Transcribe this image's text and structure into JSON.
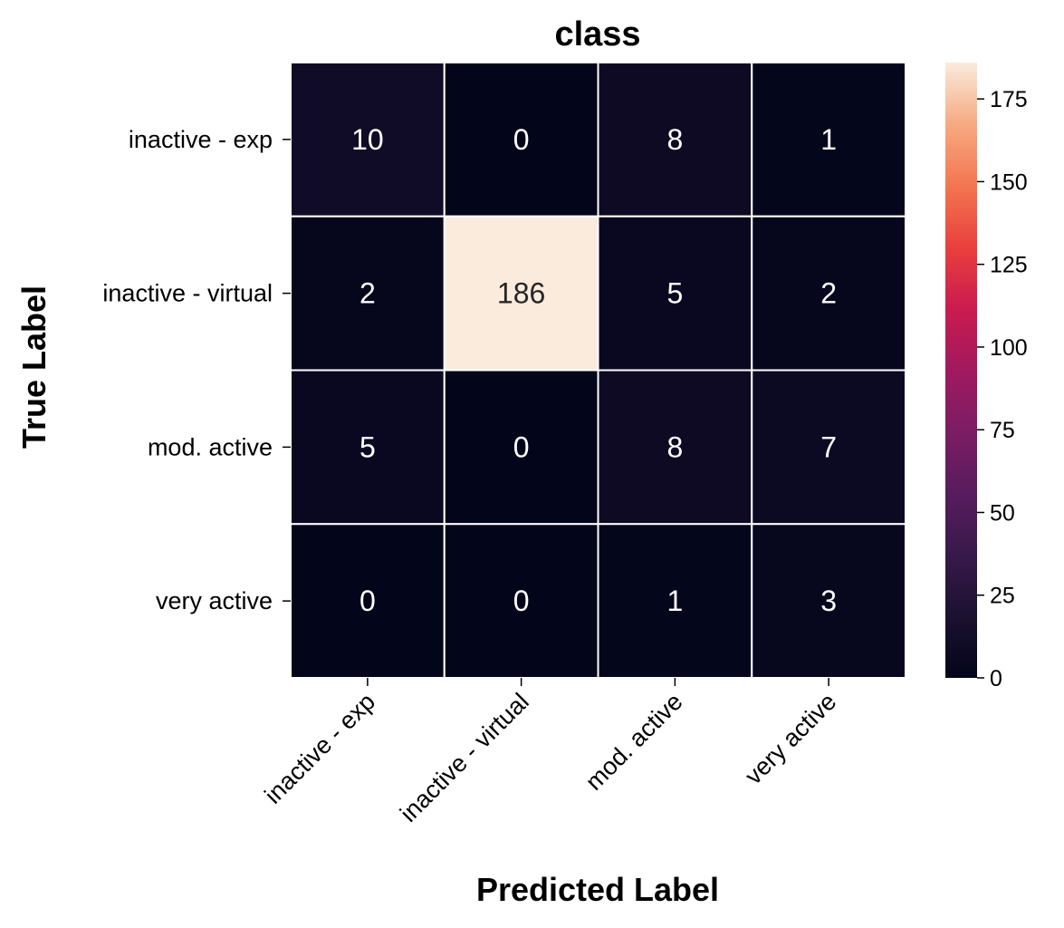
{
  "chart_data": {
    "type": "heatmap",
    "title": "class",
    "xlabel": "Predicted Label",
    "ylabel": "True Label",
    "x_categories": [
      "inactive - exp",
      "inactive - virtual",
      "mod. active",
      "very active"
    ],
    "y_categories": [
      "inactive - exp",
      "inactive - virtual",
      "mod. active",
      "very active"
    ],
    "values": [
      [
        10,
        0,
        8,
        1
      ],
      [
        2,
        186,
        5,
        2
      ],
      [
        5,
        0,
        8,
        7
      ],
      [
        0,
        0,
        1,
        3
      ]
    ],
    "colormap": "rocket",
    "colorbar": {
      "range": [
        0,
        186
      ],
      "ticks": [
        0,
        25,
        50,
        75,
        100,
        125,
        150,
        175
      ],
      "tick_labels": [
        "0",
        "25",
        "50",
        "75",
        "100",
        "125",
        "150",
        "175"
      ]
    },
    "cell_separator_color": "#ffffff"
  }
}
